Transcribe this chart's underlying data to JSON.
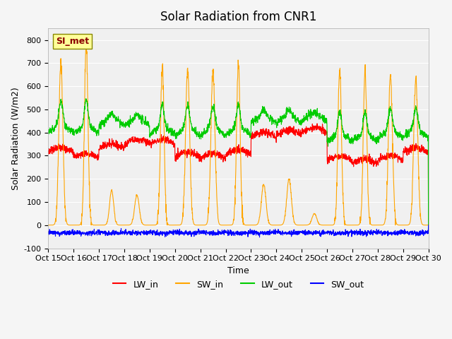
{
  "title": "Solar Radiation from CNR1",
  "xlabel": "Time",
  "ylabel": "Solar Radiation (W/m2)",
  "ylim": [
    -100,
    850
  ],
  "yticks": [
    -100,
    0,
    100,
    200,
    300,
    400,
    500,
    600,
    700,
    800
  ],
  "x_tick_labels": [
    "Oct 15",
    "Oct 16",
    "Oct 17",
    "Oct 18",
    "Oct 19",
    "Oct 20",
    "Oct 21",
    "Oct 22",
    "Oct 23",
    "Oct 24",
    "Oct 25",
    "Oct 26",
    "Oct 27",
    "Oct 28",
    "Oct 29",
    "Oct 30"
  ],
  "colors": {
    "LW_in": "#ff0000",
    "SW_in": "#ffa500",
    "LW_out": "#00cc00",
    "SW_out": "#0000ff"
  },
  "bg_color": "#e8e8e8",
  "ax_bg_color": "#f0f0f0",
  "annotation_text": "SI_met",
  "annotation_color": "#8b0000",
  "annotation_bg": "#ffff99",
  "title_fontsize": 12,
  "label_fontsize": 9,
  "tick_fontsize": 8
}
